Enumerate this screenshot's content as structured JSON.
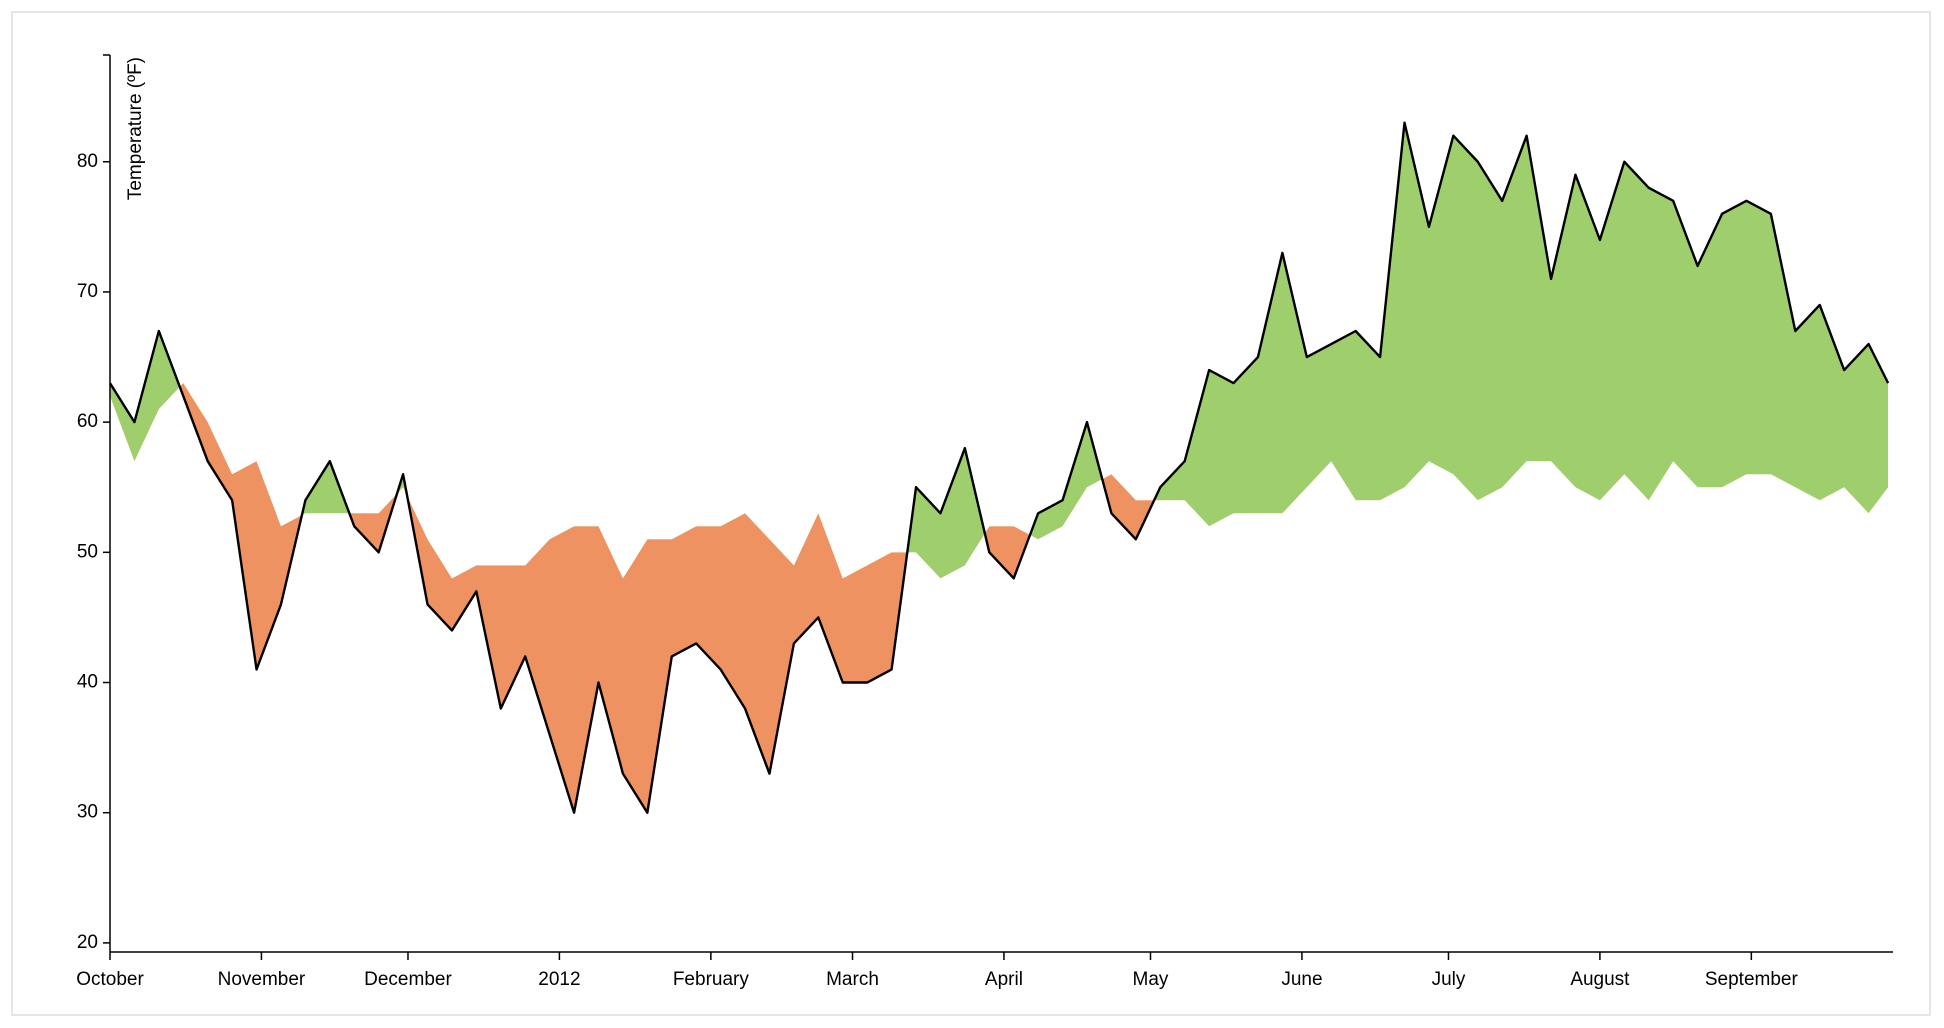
{
  "chart_data": {
    "type": "difference",
    "y_label": "Temperature (ºF)",
    "x": [
      0,
      5,
      10,
      15,
      20,
      25,
      30,
      35,
      40,
      45,
      50,
      55,
      60,
      65,
      70,
      75,
      80,
      85,
      90,
      95,
      100,
      105,
      110,
      115,
      120,
      125,
      130,
      135,
      140,
      145,
      150,
      155,
      160,
      165,
      170,
      175,
      180,
      185,
      190,
      195,
      200,
      205,
      210,
      215,
      220,
      225,
      230,
      235,
      240,
      245,
      250,
      255,
      260,
      265,
      270,
      275,
      280,
      285,
      290,
      295,
      300,
      305,
      310,
      315,
      320,
      325,
      330,
      335,
      340,
      345,
      350,
      355,
      360,
      364
    ],
    "series": [
      {
        "color": "#000000",
        "values": [
          63,
          60,
          67,
          62,
          57,
          54,
          41,
          46,
          54,
          57,
          52,
          50,
          56,
          46,
          44,
          47,
          38,
          42,
          36,
          30,
          40,
          33,
          30,
          42,
          43,
          41,
          38,
          33,
          43,
          45,
          40,
          40,
          41,
          55,
          53,
          58,
          50,
          48,
          53,
          54,
          60,
          53,
          51,
          55,
          57,
          64,
          63,
          65,
          73,
          65,
          66,
          67,
          65,
          83,
          75,
          82,
          80,
          77,
          82,
          71,
          79,
          74,
          80,
          78,
          77,
          72,
          76,
          77,
          76,
          67,
          69,
          64,
          66,
          63
        ]
      },
      {
        "values": [
          62,
          57,
          61,
          63,
          60,
          56,
          57,
          52,
          53,
          53,
          53,
          53,
          55,
          51,
          48,
          49,
          49,
          49,
          51,
          52,
          52,
          48,
          51,
          51,
          52,
          52,
          53,
          51,
          49,
          53,
          48,
          49,
          50,
          50,
          48,
          49,
          52,
          52,
          51,
          52,
          55,
          56,
          54,
          54,
          54,
          52,
          53,
          53,
          53,
          55,
          57,
          54,
          54,
          55,
          57,
          56,
          54,
          55,
          57,
          57,
          55,
          54,
          56,
          54,
          57,
          55,
          55,
          56,
          56,
          55,
          54,
          55,
          53,
          55
        ]
      }
    ],
    "above_color": "#9ecf6c",
    "below_color": "#ee9262",
    "xlim": [
      0,
      365
    ],
    "xticks": [
      {
        "value": 0,
        "label": "October"
      },
      {
        "value": 31,
        "label": "November"
      },
      {
        "value": 61,
        "label": "December"
      },
      {
        "value": 92,
        "label": "2012"
      },
      {
        "value": 123,
        "label": "February"
      },
      {
        "value": 152,
        "label": "March"
      },
      {
        "value": 183,
        "label": "April"
      },
      {
        "value": 213,
        "label": "May"
      },
      {
        "value": 244,
        "label": "June"
      },
      {
        "value": 274,
        "label": "July"
      },
      {
        "value": 305,
        "label": "August"
      },
      {
        "value": 336,
        "label": "September"
      }
    ],
    "ylim": [
      19.3,
      88.2
    ],
    "yticks": [
      20,
      30,
      40,
      50,
      60,
      70,
      80
    ]
  }
}
